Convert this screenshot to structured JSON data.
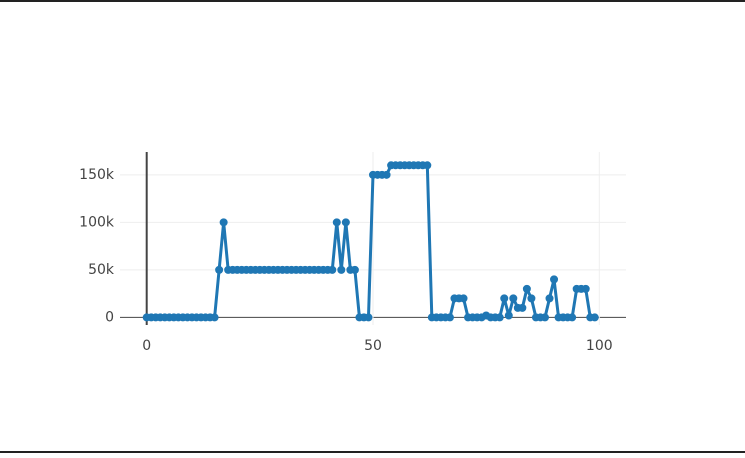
{
  "chart_data": {
    "type": "line",
    "color": "#1f77b4",
    "grid": true,
    "x": [
      0,
      1,
      2,
      3,
      4,
      5,
      6,
      7,
      8,
      9,
      10,
      11,
      12,
      13,
      14,
      15,
      16,
      17,
      18,
      19,
      20,
      21,
      22,
      23,
      24,
      25,
      26,
      27,
      28,
      29,
      30,
      31,
      32,
      33,
      34,
      35,
      36,
      37,
      38,
      39,
      40,
      41,
      42,
      43,
      44,
      45,
      46,
      47,
      48,
      49,
      50,
      51,
      52,
      53,
      54,
      55,
      56,
      57,
      58,
      59,
      60,
      61,
      62,
      63,
      64,
      65,
      66,
      67,
      68,
      69,
      70,
      71,
      72,
      73,
      74,
      75,
      76,
      77,
      78,
      79,
      80,
      81,
      82,
      83,
      84,
      85,
      86,
      87,
      88,
      89,
      90,
      91,
      92,
      93,
      94,
      95,
      96,
      97,
      98,
      99
    ],
    "values": [
      0,
      0,
      0,
      0,
      0,
      0,
      0,
      0,
      0,
      0,
      0,
      0,
      0,
      0,
      0,
      0,
      50000,
      100000,
      50000,
      50000,
      50000,
      50000,
      50000,
      50000,
      50000,
      50000,
      50000,
      50000,
      50000,
      50000,
      50000,
      50000,
      50000,
      50000,
      50000,
      50000,
      50000,
      50000,
      50000,
      50000,
      50000,
      50000,
      100000,
      50000,
      100000,
      50000,
      50000,
      0,
      0,
      0,
      150000,
      150000,
      150000,
      150000,
      160000,
      160000,
      160000,
      160000,
      160000,
      160000,
      160000,
      160000,
      160000,
      0,
      0,
      0,
      0,
      0,
      20000,
      20000,
      20000,
      0,
      0,
      0,
      0,
      2000,
      0,
      0,
      0,
      20000,
      2000,
      20000,
      10000,
      10000,
      30000,
      20000,
      0,
      0,
      0,
      20000,
      40000,
      0,
      0,
      0,
      0,
      30000,
      30000,
      30000,
      0,
      0
    ],
    "xlim": [
      -5.9,
      105.9
    ],
    "xticks": [
      0,
      50,
      100
    ],
    "ylim": [
      -8000,
      174000
    ],
    "yticks": [
      0,
      {
        "value": 50000,
        "label": "50k"
      },
      {
        "value": 100000,
        "label": "100k"
      },
      {
        "value": 150000,
        "label": "150k"
      }
    ]
  }
}
